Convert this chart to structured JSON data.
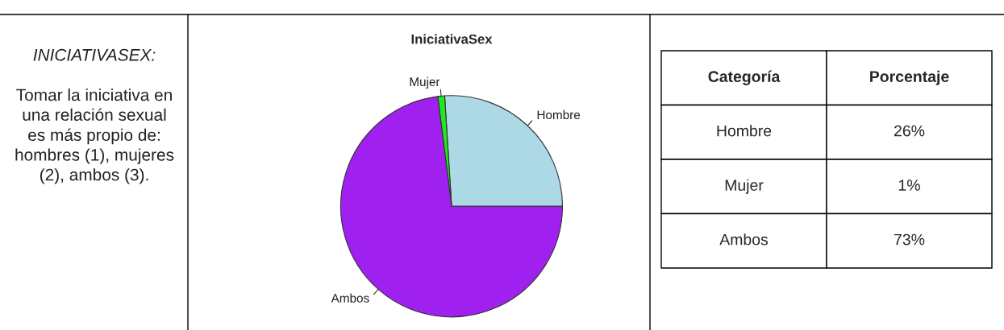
{
  "chart_data": {
    "type": "pie",
    "title": "IniciativaSex",
    "categories": [
      "Hombre",
      "Mujer",
      "Ambos"
    ],
    "values": [
      26,
      1,
      73
    ],
    "colors": [
      "#add8e6",
      "#1ee81e",
      "#a020f0"
    ],
    "annotations": [
      "INICIATIVASEX:",
      "Tomar la iniciativa en una relación sexual es más propio de: hombres (1), mujeres (2), ambos (3).",
      "Categoría",
      "Porcentaje",
      "26%",
      "1%",
      "73%"
    ],
    "legend": false
  }
}
